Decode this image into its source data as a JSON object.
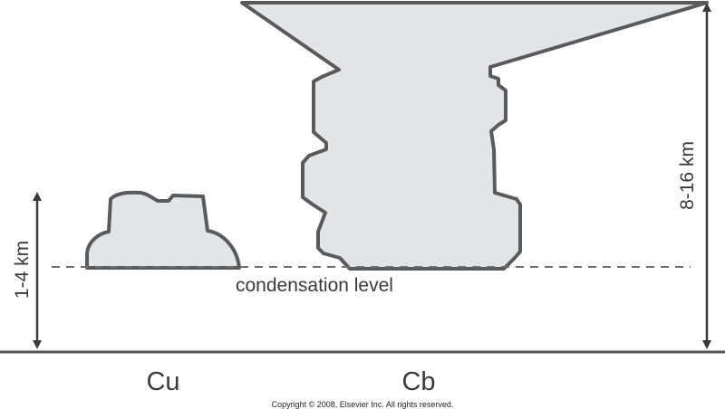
{
  "labels": {
    "condensation": "condensation level",
    "cu_height": "1-4 km",
    "cb_height": "8-16 km",
    "cu": "Cu",
    "cb": "Cb",
    "copyright": "Copyright © 2008, Elsevier Inc. All rights reserved."
  },
  "colors": {
    "cloud_fill": "#e3e4e6",
    "cloud_stroke": "#5a5a5c",
    "line": "#555555",
    "dashed": "#6e6e6e"
  }
}
